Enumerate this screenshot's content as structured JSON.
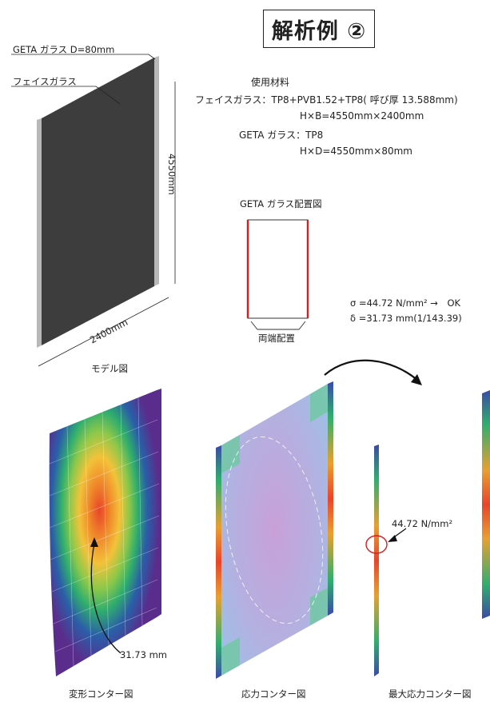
{
  "title": "解析例 ②",
  "model": {
    "label_geta": "GETA ガラス D=80mm",
    "label_face": "フェイスガラス",
    "dim_height": "4550mm",
    "dim_width": "2400mm",
    "caption": "モデル図"
  },
  "materials": {
    "heading": "使用材料",
    "face_line1": "フェイスガラス：TP8+PVB1.52+TP8( 呼び厚 13.588mm)",
    "face_line2": "H×B=4550mm×2400mm",
    "geta_line1": "GETA ガラス：TP8",
    "geta_line2": "H×D=4550mm×80mm"
  },
  "layout_diagram": {
    "title": "GETA ガラス配置図",
    "label": "両端配置"
  },
  "results": {
    "sigma": "σ =44.72 N/mm² →　OK",
    "delta": "δ =31.73 mm(1/143.39)"
  },
  "contours": {
    "deform_value": "31.73 mm",
    "stress_value": "44.72 N/mm²",
    "caption_deform": "変形コンター図",
    "caption_stress": "応力コンター図",
    "caption_max": "最大応力コンター図"
  },
  "colors": {
    "face_glass": "#3d3d3d",
    "geta_glass": "#b8b8b8",
    "geta_red": "#d32020",
    "contour_hot": "#e8452a",
    "contour_cold": "#5a2d8c"
  }
}
